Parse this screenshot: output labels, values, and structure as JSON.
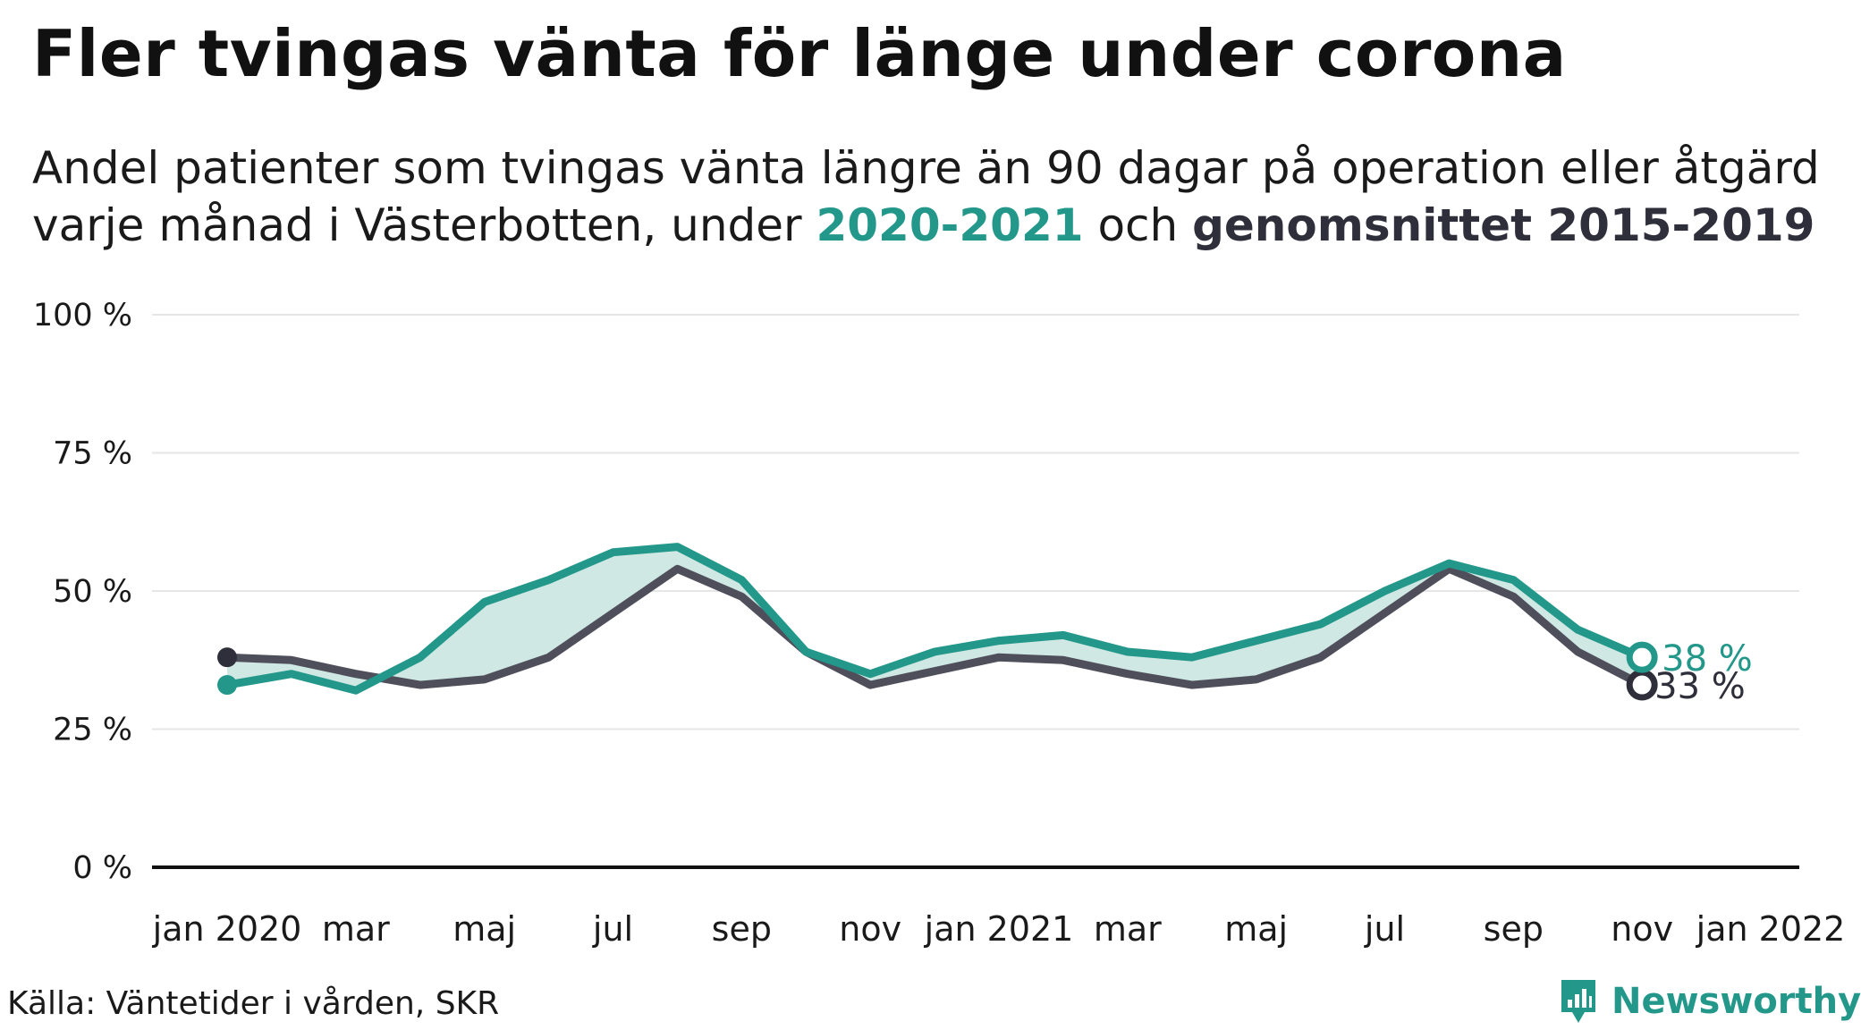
{
  "title": "Fler tvingas vänta för länge under corona",
  "subtitle": {
    "line1": "Andel patienter som tvingas vänta längre än 90 dagar på operation eller åtgärd",
    "line2_prefix": "varje månad i Västerbotten, under ",
    "highlight_a": "2020-2021",
    "middle": " och ",
    "highlight_b": "genomsnittet 2015-2019"
  },
  "source": "Källa: Väntetider i vården, SKR",
  "brand": {
    "name": "Newsworthy",
    "color": "#23988a",
    "icon": "newsworthy-logo-icon"
  },
  "colors": {
    "current": "#23988a",
    "average": "#4f4f5c",
    "fill": "#cfe8e3",
    "grid": "#e6e6e6",
    "axis": "#111111"
  },
  "chart_data": {
    "type": "line",
    "ylim": [
      0,
      100
    ],
    "yticks": [
      0,
      25,
      50,
      75,
      100
    ],
    "ytick_labels": [
      "0 %",
      "25 %",
      "50 %",
      "75 %",
      "100 %"
    ],
    "xlim": [
      "2020-01",
      "2022-01"
    ],
    "xticks": [
      "2020-01",
      "2020-03",
      "2020-05",
      "2020-07",
      "2020-09",
      "2020-11",
      "2021-01",
      "2021-03",
      "2021-05",
      "2021-07",
      "2021-09",
      "2021-11",
      "2022-01"
    ],
    "xtick_labels": [
      "jan 2020",
      "mar",
      "maj",
      "jul",
      "sep",
      "nov",
      "jan 2021",
      "mar",
      "maj",
      "jul",
      "sep",
      "nov",
      "jan 2022"
    ],
    "x": [
      "2020-01",
      "2020-02",
      "2020-03",
      "2020-04",
      "2020-05",
      "2020-06",
      "2020-07",
      "2020-08",
      "2020-09",
      "2020-10",
      "2020-11",
      "2020-12",
      "2021-01",
      "2021-02",
      "2021-03",
      "2021-04",
      "2021-05",
      "2021-06",
      "2021-07",
      "2021-08",
      "2021-09",
      "2021-10",
      "2021-11"
    ],
    "series": [
      {
        "name": "2020-2021",
        "values": [
          33,
          35,
          32,
          38,
          48,
          52,
          57,
          58,
          52,
          39,
          35,
          39,
          41,
          42,
          39,
          38,
          41,
          44,
          50,
          55,
          52,
          43,
          38
        ],
        "end_label": "38 %"
      },
      {
        "name": "genomsnittet 2015-2019",
        "values": [
          38,
          37.5,
          35,
          33,
          34,
          38,
          46,
          54,
          49,
          39,
          33,
          35.5,
          38,
          37.5,
          35,
          33,
          34,
          38,
          46,
          54,
          49,
          39,
          33
        ],
        "end_label": "33 %"
      }
    ],
    "fill_between": true,
    "grid": true,
    "legend": "none"
  }
}
